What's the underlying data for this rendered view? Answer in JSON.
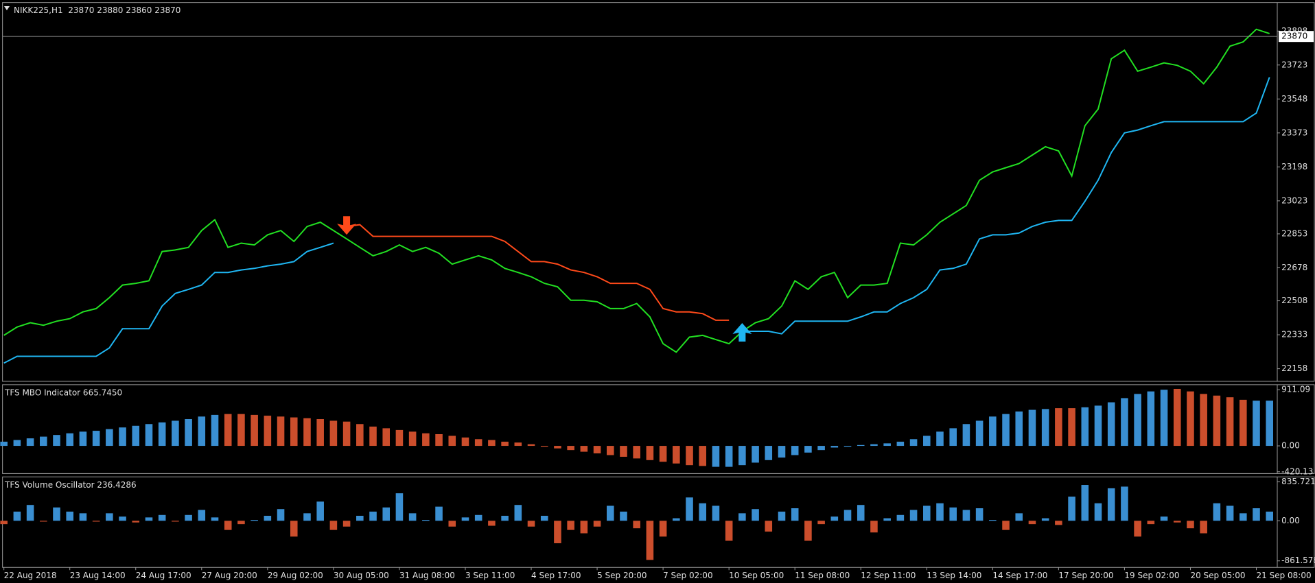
{
  "chart_data": [
    {
      "type": "line",
      "title": "NIKK225,H1  23870 23880 23860 23870",
      "ylim": [
        22093,
        24045
      ],
      "yticks": [
        23898,
        23723,
        23548,
        23373,
        23198,
        23023,
        22853,
        22678,
        22508,
        22333,
        22158
      ],
      "last_price": 23870,
      "series": [
        {
          "color": "#22e022",
          "values": [
            22330,
            22373,
            22395,
            22382,
            22403,
            22416,
            22451,
            22468,
            22524,
            22589,
            22598,
            22611,
            22762,
            22770,
            22783,
            22870,
            22926,
            22783,
            22805,
            22796,
            22848,
            22870,
            22814,
            22891,
            22913,
            22870,
            22827,
            22783,
            22740,
            22762,
            22796,
            22762,
            22783,
            22753,
            22697,
            22719,
            22740,
            22719,
            22675,
            22654,
            22632,
            22598,
            22580,
            22511,
            22511,
            22503,
            22468,
            22468,
            22494,
            22425,
            22287,
            22243,
            22321,
            22330,
            22308,
            22287,
            22351,
            22395,
            22416,
            22481,
            22611,
            22567,
            22632,
            22654,
            22524,
            22589,
            22589,
            22598,
            22805,
            22796,
            22848,
            22913,
            22956,
            22999,
            23129,
            23172,
            23194,
            23215,
            23259,
            23302,
            23280,
            23151,
            23410,
            23496,
            23755,
            23799,
            23691,
            23712,
            23734,
            23721,
            23691,
            23626,
            23712,
            23820,
            23842,
            23907,
            23885
          ]
        },
        {
          "color": "#1fb6f2",
          "values": [
            22187,
            22222,
            22222,
            22222,
            22222,
            22222,
            22222,
            22222,
            22265,
            22364,
            22364,
            22364,
            22481,
            22546,
            22567,
            22589,
            22654,
            22654,
            22667,
            22675,
            22688,
            22697,
            22710,
            22762,
            22783,
            22805,
            null,
            null,
            null,
            null,
            null,
            null,
            null,
            null,
            null,
            null,
            null,
            null,
            null,
            null,
            null,
            null,
            null,
            null,
            null,
            null,
            null,
            null,
            null,
            null,
            null,
            null,
            null,
            null,
            null,
            null,
            22351,
            22351,
            22351,
            22338,
            22403,
            22403,
            22403,
            22403,
            22403,
            22425,
            22451,
            22451,
            22494,
            22524,
            22567,
            22667,
            22675,
            22697,
            22827,
            22848,
            22848,
            22857,
            22891,
            22913,
            22922,
            22922,
            23021,
            23129,
            23272,
            23373,
            23388,
            23410,
            23431,
            23431,
            23431,
            23431,
            23431,
            23431,
            23431,
            23475,
            23660
          ]
        },
        {
          "color": "#ff4a1a",
          "values": [
            null,
            null,
            null,
            null,
            null,
            null,
            null,
            null,
            null,
            null,
            null,
            null,
            null,
            null,
            null,
            null,
            null,
            null,
            null,
            null,
            null,
            null,
            null,
            null,
            null,
            null,
            22891,
            22900,
            22840,
            22840,
            22840,
            22840,
            22840,
            22840,
            22840,
            22840,
            22840,
            22840,
            22814,
            22762,
            22710,
            22710,
            22697,
            22667,
            22654,
            22632,
            22598,
            22598,
            22598,
            22567,
            22468,
            22451,
            22451,
            22442,
            22408,
            22408,
            null,
            null,
            null,
            null,
            null,
            null,
            null,
            null,
            null,
            null,
            null,
            null,
            null,
            null,
            null,
            null,
            null,
            null,
            null,
            null,
            null,
            null,
            null,
            null,
            null,
            null,
            null,
            null,
            null,
            null,
            null,
            null,
            null,
            null,
            null,
            null,
            null,
            null,
            null,
            null,
            null
          ]
        }
      ]
    },
    {
      "type": "bar",
      "title": "TFS MBO Indicator 665.7450",
      "ylim": [
        -449,
        993
      ],
      "yticks": [
        911.09,
        {
          "value": 0,
          "label": "0.00"
        },
        -420.13
      ],
      "series": [
        {
          "color": "#3a8fd2",
          "values": [
            68,
            95,
            122,
            150,
            177,
            204,
            231,
            245,
            272,
            299,
            326,
            354,
            381,
            408,
            435,
            476,
            503,
            null,
            null,
            null,
            null,
            null,
            null,
            null,
            null,
            null,
            null,
            null,
            null,
            null,
            null,
            null,
            null,
            null,
            null,
            null,
            null,
            null,
            null,
            null,
            null,
            null,
            null,
            null,
            null,
            null,
            null,
            null,
            null,
            null,
            null,
            null,
            null,
            null,
            -340,
            -340,
            -313,
            -272,
            -231,
            -190,
            -150,
            -109,
            -68,
            -27,
            -14,
            14,
            27,
            41,
            68,
            109,
            163,
            231,
            286,
            354,
            408,
            476,
            517,
            558,
            585,
            598,
            null,
            null,
            626,
            653,
            707,
            775,
            843,
            884,
            911,
            null,
            null,
            null,
            null,
            null,
            null,
            734,
            734
          ]
        },
        {
          "color": "#cc4e2c",
          "values": [
            null,
            null,
            null,
            null,
            null,
            null,
            null,
            null,
            null,
            null,
            null,
            null,
            null,
            null,
            null,
            null,
            null,
            517,
            517,
            503,
            490,
            476,
            462,
            449,
            435,
            408,
            394,
            354,
            313,
            286,
            258,
            231,
            204,
            190,
            163,
            136,
            109,
            95,
            68,
            54,
            27,
            -14,
            -41,
            -68,
            -95,
            -122,
            -150,
            -177,
            -204,
            -231,
            -258,
            -286,
            -313,
            -326,
            null,
            null,
            null,
            null,
            null,
            null,
            null,
            null,
            null,
            null,
            null,
            null,
            null,
            null,
            null,
            null,
            null,
            null,
            null,
            null,
            null,
            null,
            null,
            null,
            null,
            null,
            612,
            612,
            null,
            null,
            null,
            null,
            null,
            null,
            null,
            925,
            884,
            843,
            816,
            789,
            748,
            null,
            null
          ]
        }
      ]
    },
    {
      "type": "bar",
      "title": "TFS Volume Oscillator 236.4286",
      "ylim": [
        -1002,
        943
      ],
      "yticks": [
        835.7214,
        {
          "value": 0,
          "label": "0.00"
        },
        -861.578
      ],
      "color": "#3a8fd2",
      "negative_color": "#cc4e2c",
      "categories": [
        "22 Aug 2018",
        null,
        null,
        null,
        null,
        "23 Aug 14:00",
        null,
        null,
        null,
        null,
        "24 Aug 17:00",
        null,
        null,
        null,
        null,
        "27 Aug 20:00",
        null,
        null,
        null,
        null,
        "29 Aug 02:00",
        null,
        null,
        null,
        null,
        "30 Aug 05:00",
        null,
        null,
        null,
        null,
        "31 Aug 08:00",
        null,
        null,
        null,
        null,
        "3 Sep 11:00",
        null,
        null,
        null,
        null,
        "4 Sep 17:00",
        null,
        null,
        null,
        null,
        "5 Sep 20:00",
        null,
        null,
        null,
        null,
        "7 Sep 02:00",
        null,
        null,
        null,
        null,
        "10 Sep 05:00",
        null,
        null,
        null,
        null,
        "11 Sep 08:00",
        null,
        null,
        null,
        null,
        "12 Sep 11:00",
        null,
        null,
        null,
        null,
        "13 Sep 14:00",
        null,
        null,
        null,
        null,
        "14 Sep 17:00",
        null,
        null,
        null,
        null,
        "17 Sep 20:00",
        null,
        null,
        null,
        null,
        "19 Sep 02:00",
        null,
        null,
        null,
        null,
        "20 Sep 05:00",
        null,
        null,
        null,
        null,
        "21 Sep 08:00",
        null
      ],
      "values": [
        -72,
        197,
        340,
        -18,
        286,
        197,
        161,
        -18,
        161,
        90,
        -36,
        72,
        125,
        -18,
        125,
        233,
        72,
        -197,
        -72,
        18,
        107,
        251,
        -340,
        161,
        412,
        -197,
        -125,
        107,
        197,
        286,
        591,
        161,
        18,
        304,
        -125,
        72,
        125,
        -107,
        107,
        340,
        -125,
        107,
        -483,
        -197,
        -269,
        -125,
        322,
        197,
        -161,
        -841,
        -340,
        54,
        501,
        376,
        322,
        -430,
        161,
        251,
        -233,
        197,
        269,
        -430,
        -72,
        90,
        233,
        340,
        -251,
        54,
        125,
        233,
        322,
        376,
        286,
        233,
        269,
        18,
        -197,
        161,
        -72,
        54,
        -90,
        519,
        770,
        376,
        698,
        734,
        -340,
        -72,
        90,
        -36,
        -161,
        -269,
        376,
        322,
        161,
        269,
        197
      ]
    }
  ]
}
